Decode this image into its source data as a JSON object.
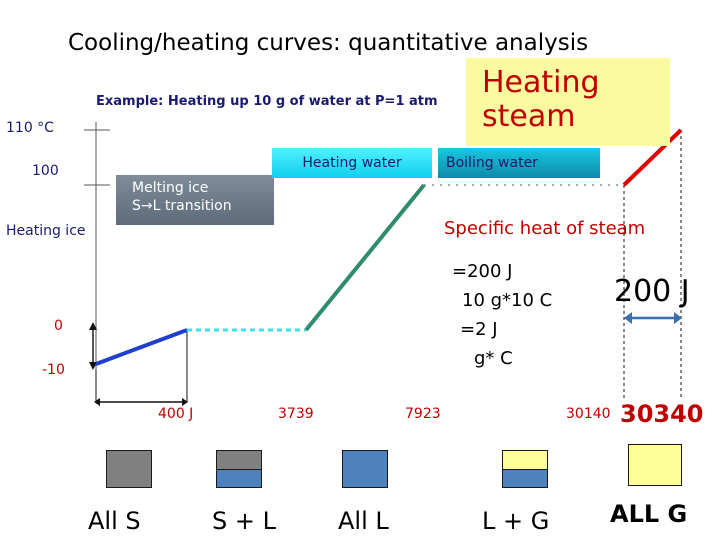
{
  "title": "Cooling/heating curves: quantitative analysis",
  "subtitle": "Example: Heating up 10 g of water at P=1 atm",
  "y_labels": {
    "t110": "110 °C",
    "t100": "100",
    "t0": "0",
    "tm10": "-10"
  },
  "labels": {
    "heating_ice": "Heating ice",
    "melting_line1": "Melting ice",
    "melting_line2": "S→L transition",
    "heating_water": "Heating water",
    "boiling_water": "Boiling water",
    "heating_steam_line1": "Heating",
    "heating_steam_line2": "steam",
    "specific_heat": "Specific heat of steam"
  },
  "calculation": {
    "line1": "=200 J",
    "line2": "10 g*10 C",
    "line3": "=2 J",
    "line4": "g* C",
    "big_value": "200 J"
  },
  "x_labels": {
    "x1": "400 J",
    "x2": "3739",
    "x3": "7923",
    "x4": "30140",
    "x5": "30340"
  },
  "states": [
    {
      "label": "All  S",
      "fill": "#808080"
    },
    {
      "label": "S + L",
      "top": "#808080",
      "bottom": "#4f81bd"
    },
    {
      "label": "All L",
      "fill": "#4f81bd"
    },
    {
      "label": "L + G",
      "top": "#ffff99",
      "bottom": "#4f81bd"
    },
    {
      "label": "ALL G",
      "fill": "#ffff99"
    }
  ],
  "colors": {
    "ice": "#1f3fcf",
    "melting": "#40e0f0",
    "water": "#2e8b6e",
    "steam": "#e00000",
    "arrow": "#3a6fb0",
    "accent": "#c00000"
  },
  "chart_data": {
    "type": "line",
    "title": "Cooling/heating curves: quantitative analysis",
    "xlabel": "",
    "ylabel": "",
    "x_ticks": [
      400,
      3739,
      7923,
      30140,
      30340
    ],
    "y_ticks": [
      -10,
      0,
      100,
      110
    ],
    "series": [
      {
        "name": "Heating ice",
        "points": [
          [
            0,
            -10
          ],
          [
            400,
            0
          ]
        ]
      },
      {
        "name": "Melting ice",
        "points": [
          [
            400,
            0
          ],
          [
            3739,
            0
          ]
        ]
      },
      {
        "name": "Heating water",
        "points": [
          [
            3739,
            0
          ],
          [
            7923,
            100
          ]
        ]
      },
      {
        "name": "Boiling water",
        "points": [
          [
            7923,
            100
          ],
          [
            30140,
            100
          ]
        ]
      },
      {
        "name": "Heating steam",
        "points": [
          [
            30140,
            100
          ],
          [
            30340,
            110
          ]
        ]
      }
    ]
  }
}
